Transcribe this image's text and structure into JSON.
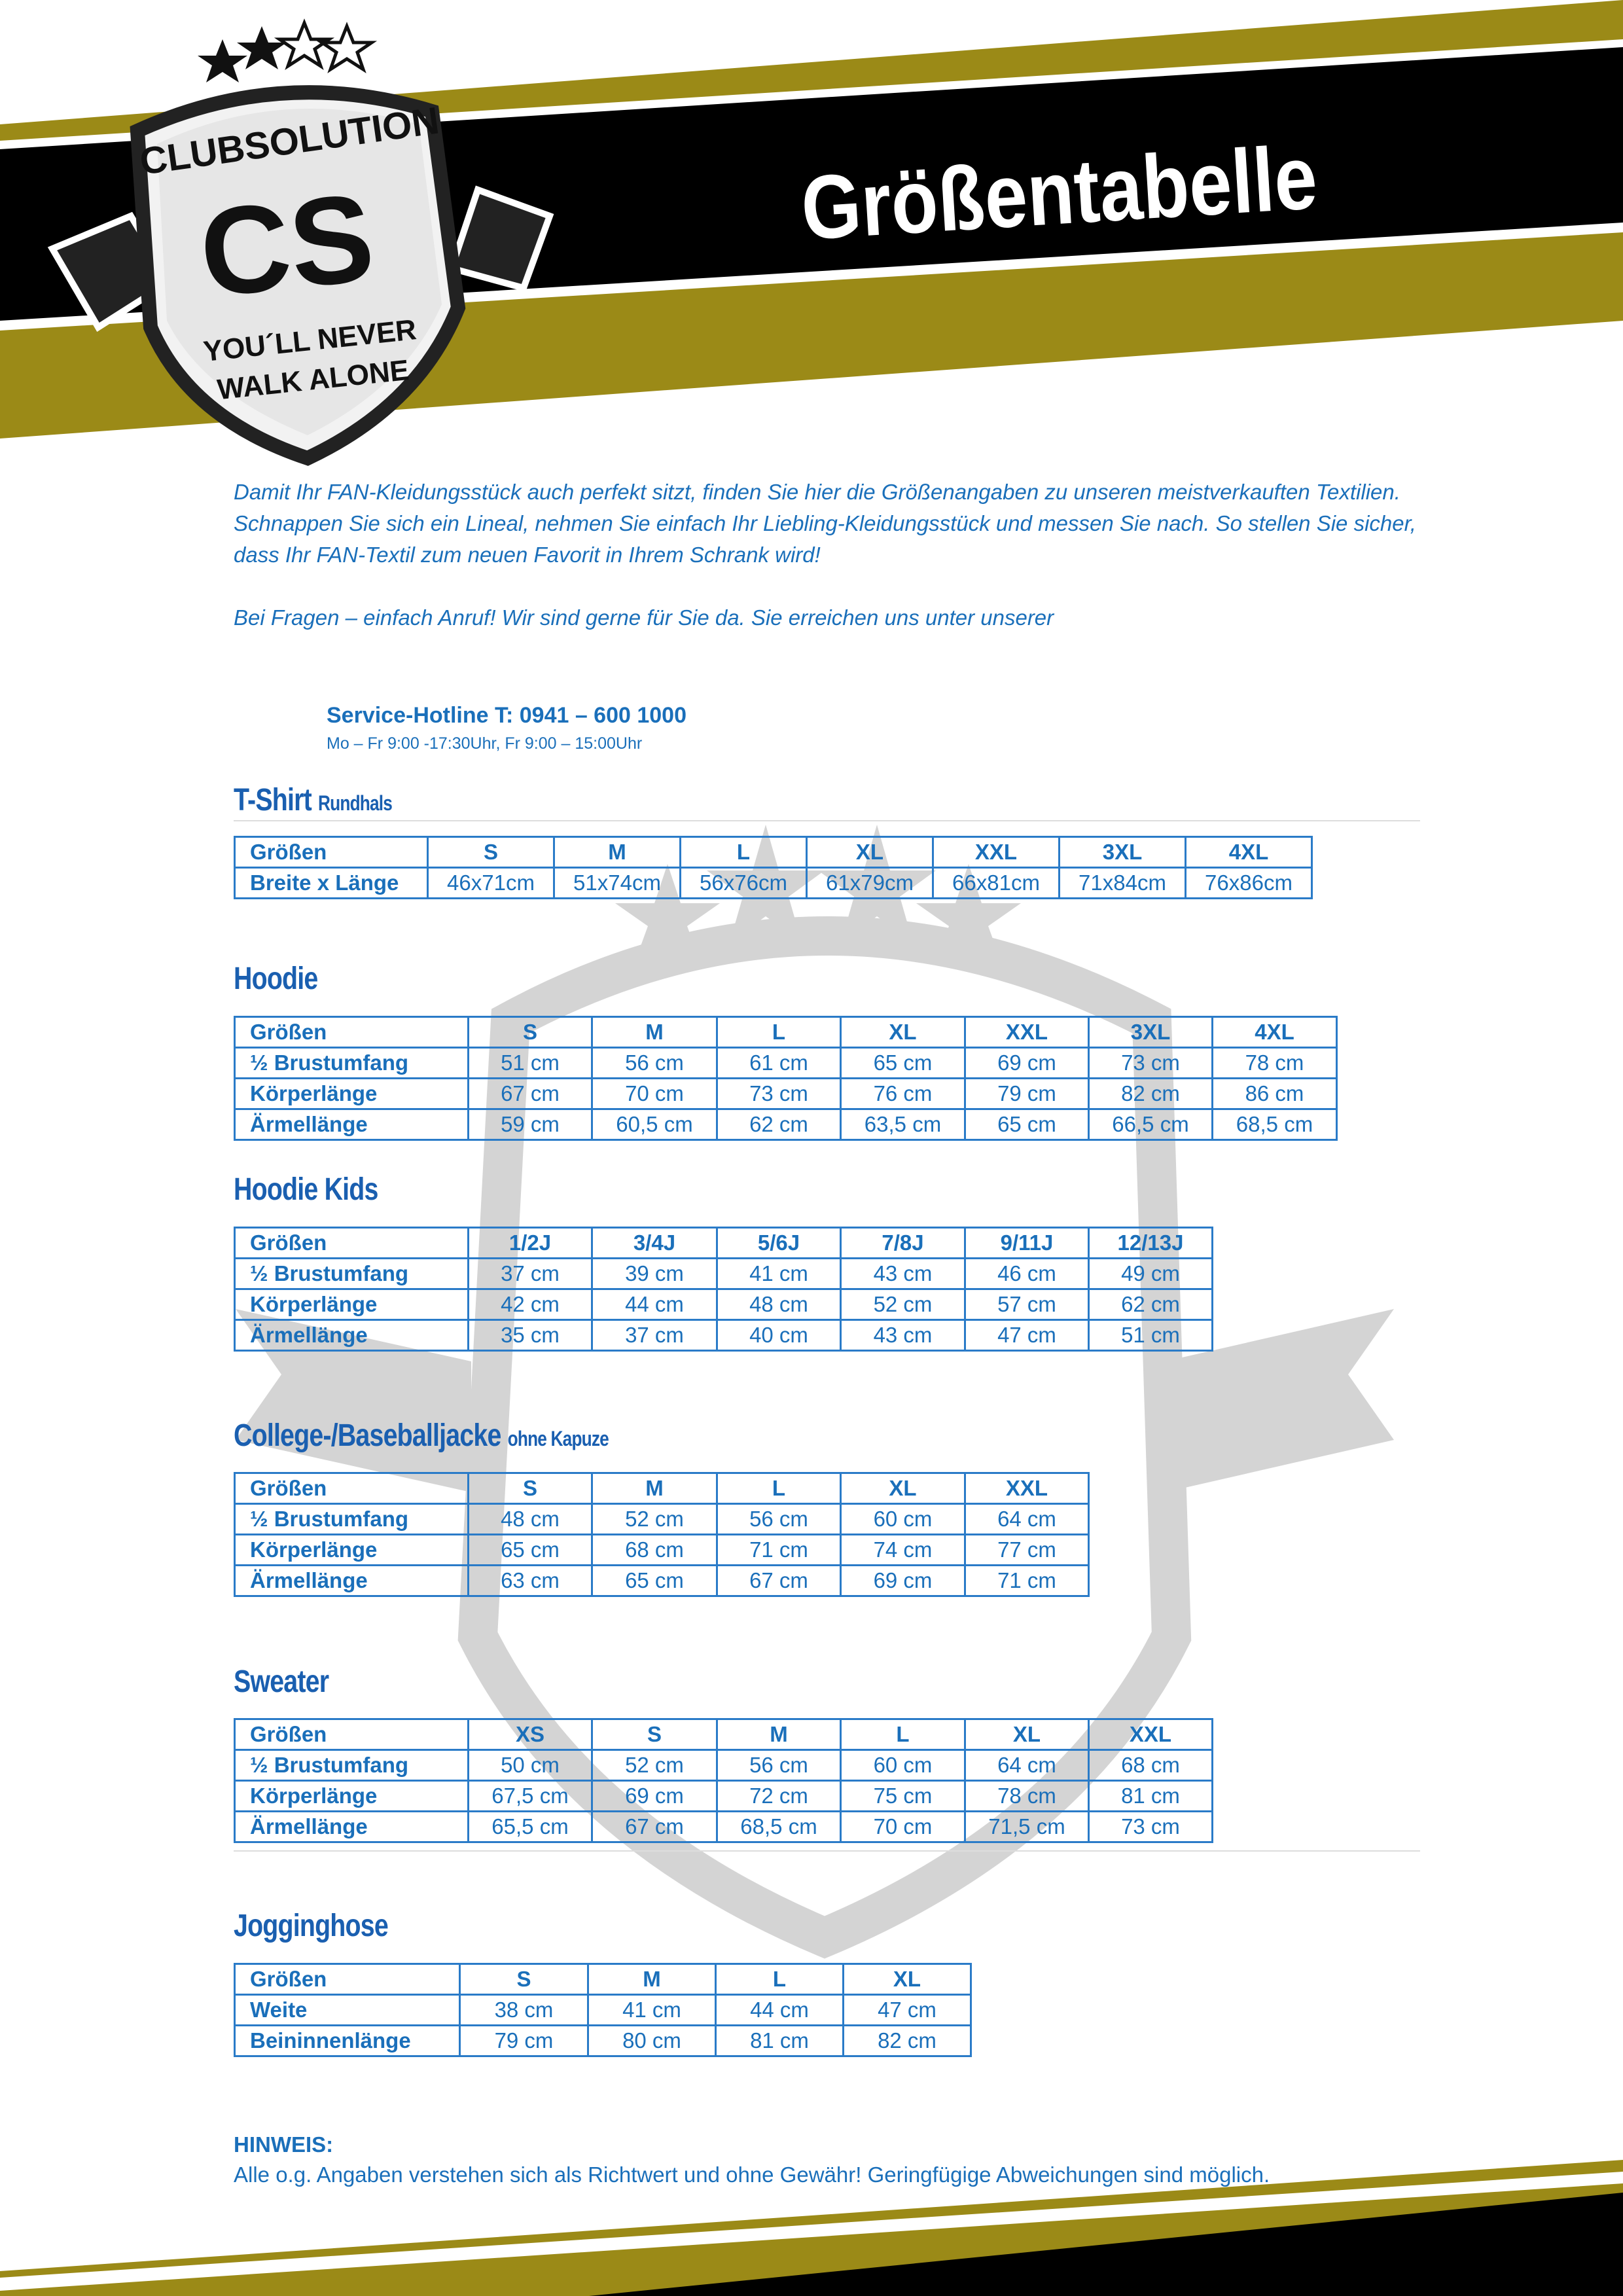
{
  "header": {
    "title": "Größentabelle",
    "logo_text": [
      "CLUBSOLUTION",
      "CS",
      "YOU´LL NEVER",
      "WALK ALONE"
    ],
    "colors": {
      "gold": "#9b8a17",
      "black": "#000000",
      "blue": "#1a6fba"
    }
  },
  "intro": {
    "p1": "Damit Ihr FAN-Kleidungsstück auch perfekt sitzt, finden Sie hier die Größenangaben zu unseren meistverkauften Textilien.",
    "p2": "Schnappen Sie sich ein Lineal, nehmen Sie einfach Ihr Liebling-Kleidungsstück und messen Sie nach. So stellen Sie sicher, dass Ihr FAN-Textil zum neuen Favorit in Ihrem Schrank wird!",
    "p3": "Bei Fragen – einfach Anruf! Wir sind gerne für Sie da. Sie erreichen uns unter unserer"
  },
  "contact": {
    "hotline": "Service-Hotline T: 0941 – 600 1000",
    "hours": "Mo – Fr 9:00 -17:30Uhr, Fr 9:00 – 15:00Uhr"
  },
  "tables": [
    {
      "title": "T-Shirt",
      "subtitle": "Rundhals",
      "rows": [
        [
          "Größen",
          "S",
          "M",
          "L",
          "XL",
          "XXL",
          "3XL",
          "4XL"
        ],
        [
          "Breite x Länge",
          "46x71cm",
          "51x74cm",
          "56x76cm",
          "61x79cm",
          "66x81cm",
          "71x84cm",
          "76x86cm"
        ]
      ]
    },
    {
      "title": "Hoodie",
      "subtitle": "",
      "rows": [
        [
          "Größen",
          "S",
          "M",
          "L",
          "XL",
          "XXL",
          "3XL",
          "4XL"
        ],
        [
          "½ Brustumfang",
          "51 cm",
          "56 cm",
          "61 cm",
          "65 cm",
          "69 cm",
          "73 cm",
          "78 cm"
        ],
        [
          "Körperlänge",
          "67 cm",
          "70 cm",
          "73 cm",
          "76 cm",
          "79 cm",
          "82 cm",
          "86 cm"
        ],
        [
          "Ärmellänge",
          "59 cm",
          "60,5 cm",
          "62 cm",
          "63,5 cm",
          "65 cm",
          "66,5 cm",
          "68,5 cm"
        ]
      ]
    },
    {
      "title": "Hoodie Kids",
      "subtitle": "",
      "rows": [
        [
          "Größen",
          "1/2J",
          "3/4J",
          "5/6J",
          "7/8J",
          "9/11J",
          "12/13J"
        ],
        [
          "½ Brustumfang",
          "37 cm",
          "39 cm",
          "41 cm",
          "43 cm",
          "46 cm",
          "49 cm"
        ],
        [
          "Körperlänge",
          "42 cm",
          "44 cm",
          "48 cm",
          "52 cm",
          "57 cm",
          "62 cm"
        ],
        [
          "Ärmellänge",
          "35 cm",
          "37 cm",
          "40 cm",
          "43 cm",
          "47 cm",
          "51 cm"
        ]
      ]
    },
    {
      "title": "College-/Baseballjacke",
      "subtitle": "ohne Kapuze",
      "rows": [
        [
          "Größen",
          "S",
          "M",
          "L",
          "XL",
          "XXL"
        ],
        [
          "½ Brustumfang",
          "48 cm",
          "52 cm",
          "56 cm",
          "60 cm",
          "64 cm"
        ],
        [
          "Körperlänge",
          "65 cm",
          "68 cm",
          "71 cm",
          "74 cm",
          "77 cm"
        ],
        [
          "Ärmellänge",
          "63 cm",
          "65 cm",
          "67 cm",
          "69 cm",
          "71 cm"
        ]
      ]
    },
    {
      "title": "Sweater",
      "subtitle": "",
      "rows": [
        [
          "Größen",
          "XS",
          "S",
          "M",
          "L",
          "XL",
          "XXL"
        ],
        [
          "½ Brustumfang",
          "50 cm",
          "52 cm",
          "56 cm",
          "60 cm",
          "64 cm",
          "68 cm"
        ],
        [
          "Körperlänge",
          "67,5 cm",
          "69 cm",
          "72 cm",
          "75 cm",
          "78 cm",
          "81 cm"
        ],
        [
          "Ärmellänge",
          "65,5 cm",
          "67 cm",
          "68,5 cm",
          "70 cm",
          "71,5 cm",
          "73 cm"
        ]
      ]
    },
    {
      "title": "Jogginghose",
      "subtitle": "",
      "rows": [
        [
          "Größen",
          "S",
          "M",
          "L",
          "XL"
        ],
        [
          "Weite",
          "38 cm",
          "41 cm",
          "44 cm",
          "47 cm"
        ],
        [
          "Beininnenlänge",
          "79 cm",
          "80 cm",
          "81 cm",
          "82 cm"
        ]
      ]
    }
  ],
  "note": {
    "title": "HINWEIS:",
    "text": "Alle o.g. Angaben verstehen sich als Richtwert und ohne Gewähr! Geringfügige Abweichungen sind möglich."
  }
}
